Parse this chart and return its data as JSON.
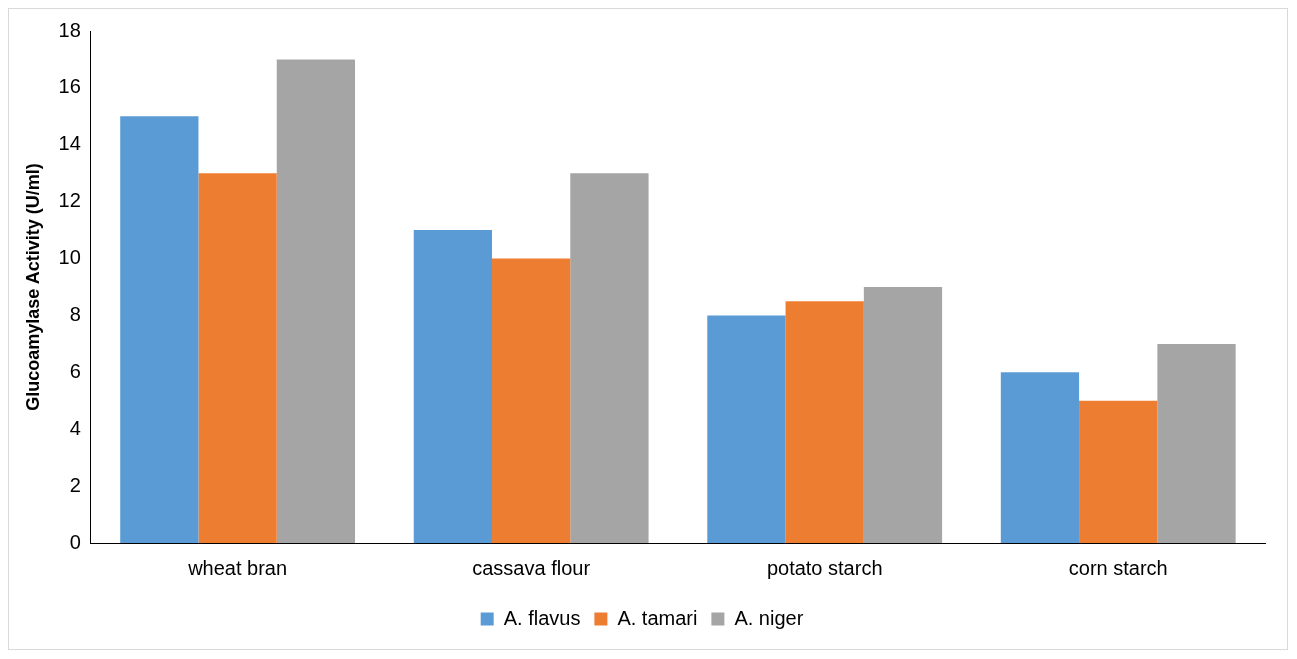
{
  "chart_data": {
    "type": "bar",
    "ylabel": "Glucoamylase Activity (U/ml)",
    "categories": [
      "wheat bran",
      "cassava flour",
      "potato starch",
      "corn starch"
    ],
    "series": [
      {
        "name": "A. flavus",
        "color": "#5b9bd5",
        "values": [
          15,
          11,
          8,
          6
        ]
      },
      {
        "name": "A. tamari",
        "color": "#ed7d31",
        "values": [
          13,
          10,
          8.5,
          5
        ]
      },
      {
        "name": "A. niger",
        "color": "#a5a5a5",
        "values": [
          17,
          13,
          9,
          7
        ]
      }
    ],
    "ylim": [
      0,
      18
    ],
    "yticks": [
      0,
      2,
      4,
      6,
      8,
      10,
      12,
      14,
      16,
      18
    ],
    "grid": false,
    "legend": "bottom"
  }
}
